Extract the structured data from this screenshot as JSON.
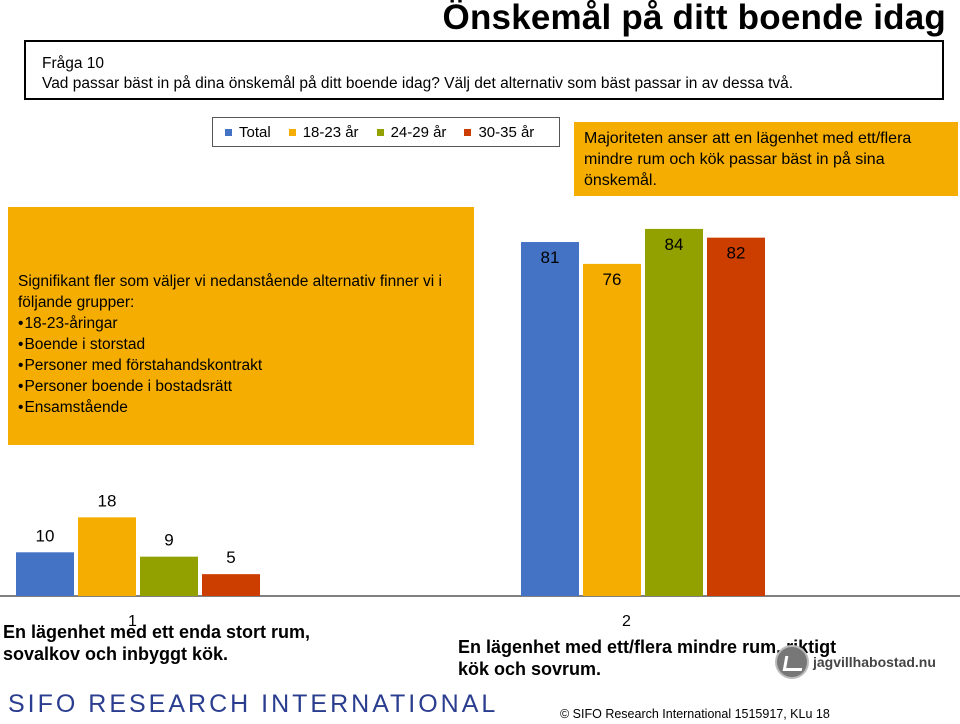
{
  "title": "Önskemål på ditt boende idag",
  "question": {
    "line1": "Fråga 10",
    "line2": "Vad passar bäst in på dina önskemål på ditt boende idag? Välj det alternativ som bäst passar in av dessa två."
  },
  "note": "Majoriteten anser att en lägenhet med ett/flera mindre rum och kök passar bäst in på sina önskemål.",
  "significance": {
    "heading_bold": "Signifikant fler som väljer vi nedanstående alternativ finner vi i följande grupper",
    "heading_tail": ":",
    "items": [
      "18-23-åringar",
      "Boende i storstad",
      "Personer med förstahandskontrakt",
      "Personer boende i bostadsrätt",
      "Ensamstående"
    ]
  },
  "colors": {
    "total": "#4472c4",
    "age_18_23": "#f4ad00",
    "age_24_29": "#92a000",
    "age_30_35": "#cc3e00",
    "box": "#f4ad00"
  },
  "chart_data": {
    "type": "bar",
    "categories": [
      "1",
      "2"
    ],
    "category_texts": [
      "En lägenhet med ett enda stort rum, sovalkov och inbyggt kök.",
      "En lägenhet med ett/flera mindre rum, riktigt kök och sovrum."
    ],
    "series": [
      {
        "name": "Total",
        "values": [
          10,
          81
        ]
      },
      {
        "name": "18-23 år",
        "values": [
          18,
          76
        ]
      },
      {
        "name": "24-29 år",
        "values": [
          9,
          84
        ]
      },
      {
        "name": "30-35 år",
        "values": [
          5,
          82
        ]
      }
    ],
    "ylim": [
      0,
      100
    ],
    "grid": false,
    "legend": "top"
  },
  "footer": {
    "logo_text": "SIFO RESEARCH INTERNATIONAL",
    "site_logo": "jagvillhabostad.nu",
    "copyright": "©  SIFO Research International 1515917, KLu 18"
  }
}
